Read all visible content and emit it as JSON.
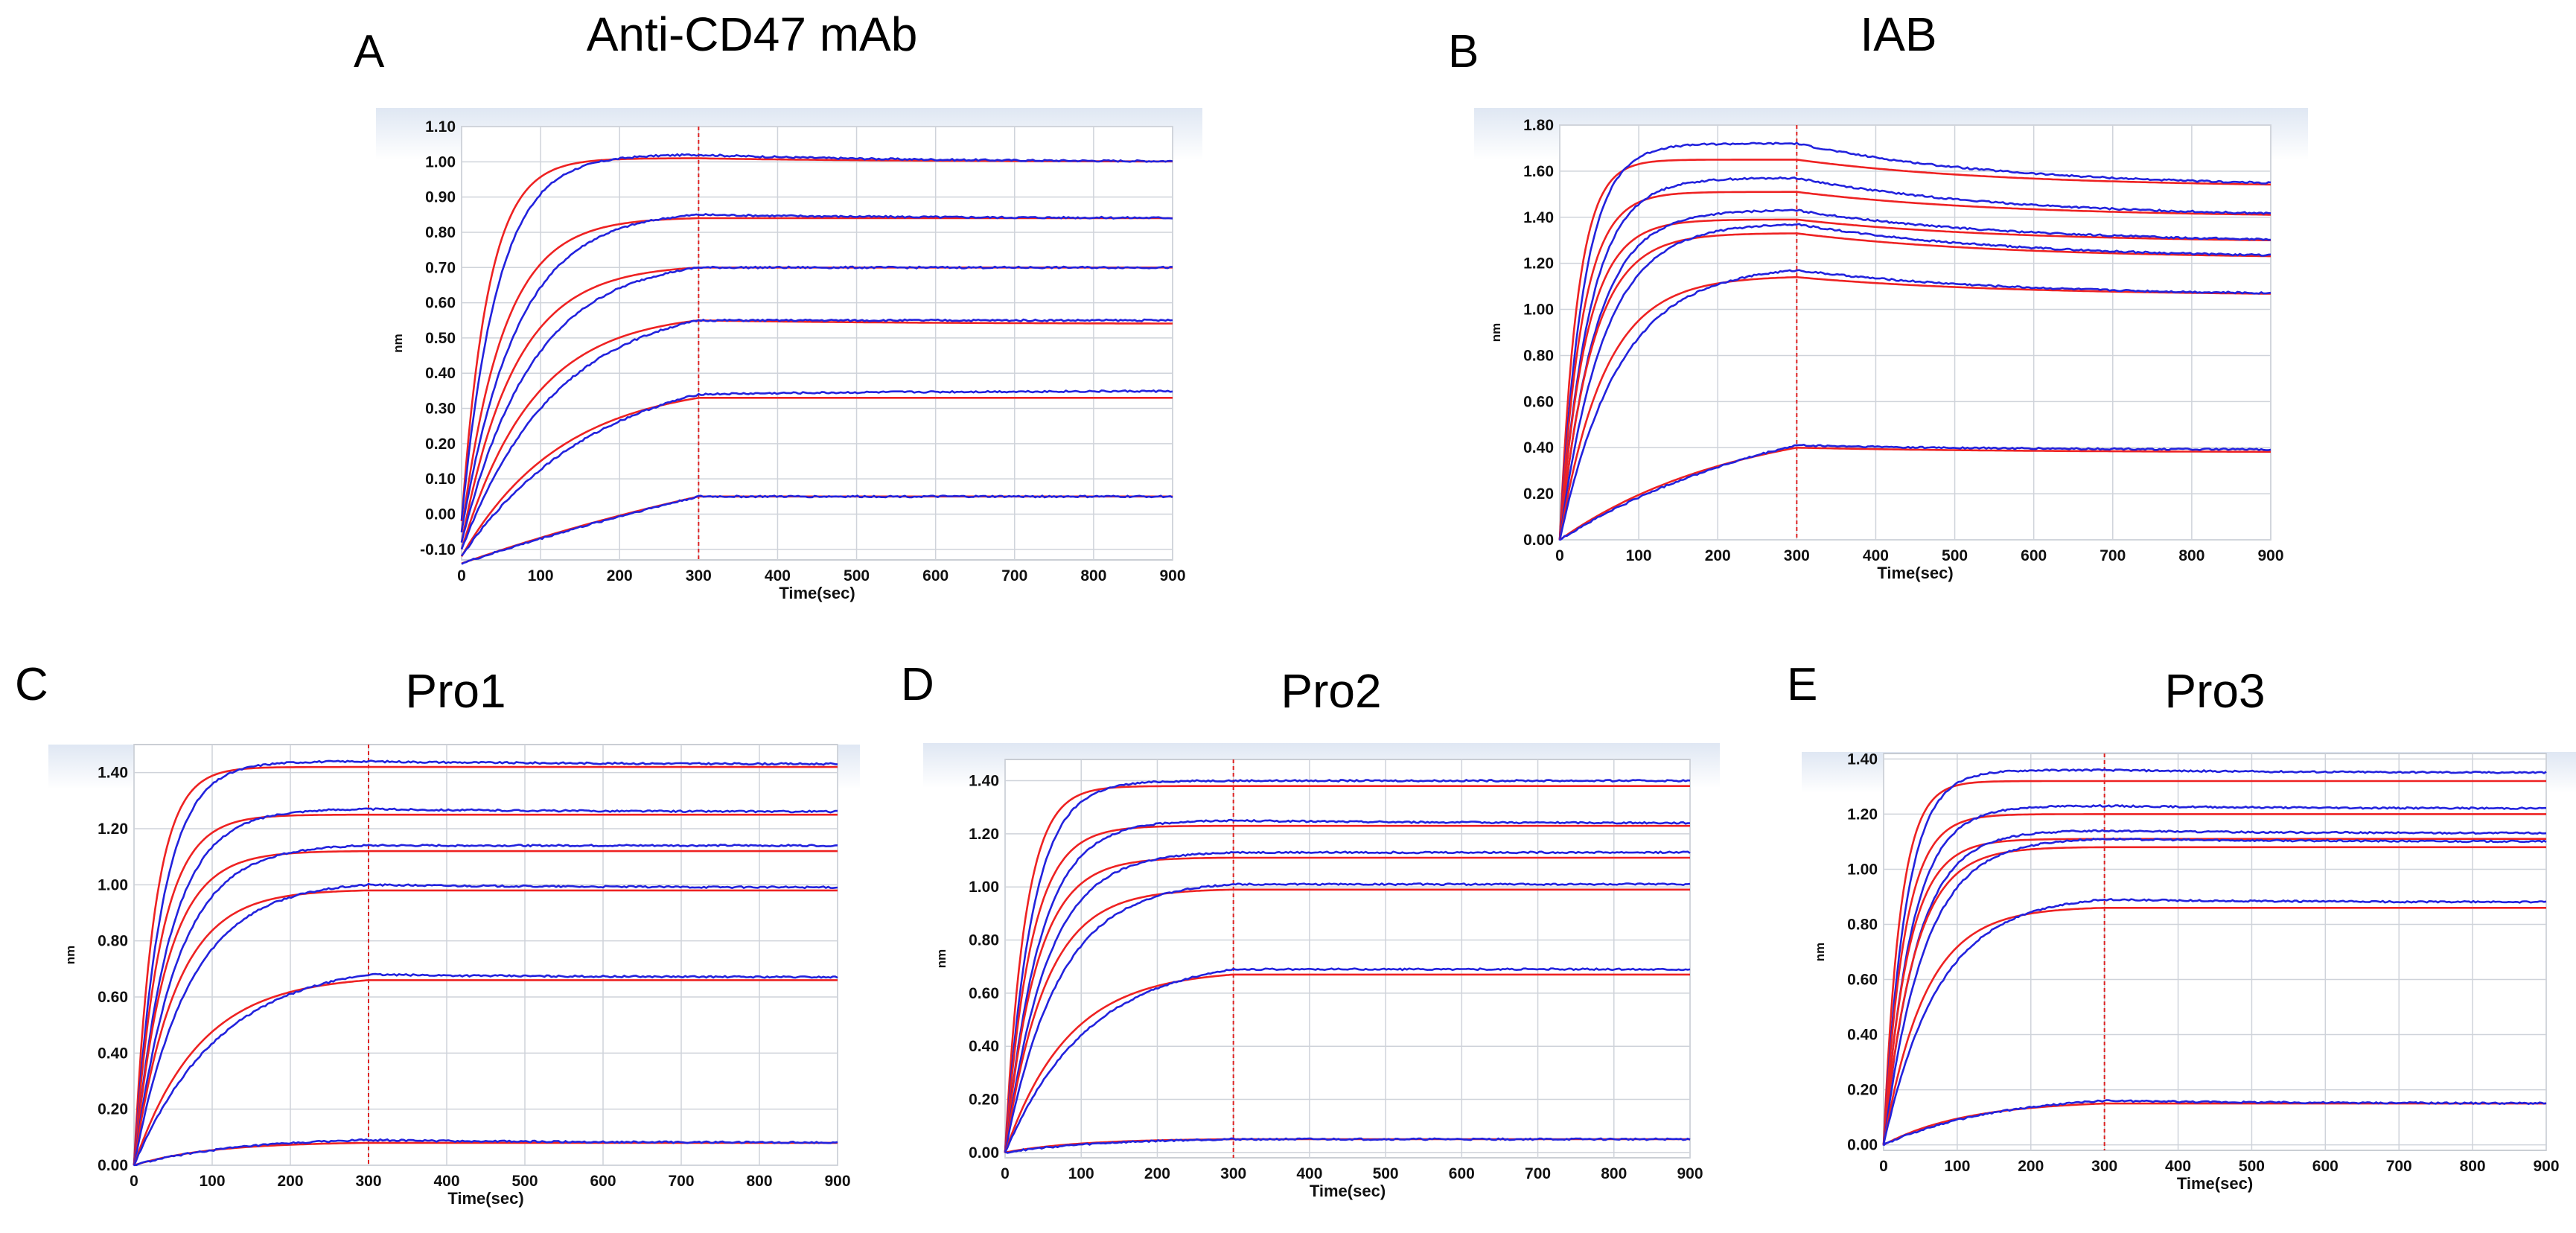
{
  "colors": {
    "fit": "#ee2222",
    "data": "#2222dd",
    "grid": "#cfd3da",
    "header": "#dfe7f3",
    "vline": "#dd2222"
  },
  "chart_data": [
    {
      "id": "A",
      "letter": "A",
      "title": "Anti-CD47 mAb",
      "type": "line",
      "xlabel": "Time(sec)",
      "ylabel": "nm",
      "xlim": [
        0,
        900
      ],
      "xticks": [
        0,
        100,
        200,
        300,
        400,
        500,
        600,
        700,
        800,
        900
      ],
      "ylim": [
        -0.13,
        1.1
      ],
      "yticks": [
        "1.10",
        "1.00",
        "0.90",
        "0.80",
        "0.70",
        "0.60",
        "0.50",
        "0.40",
        "0.30",
        "0.20",
        "0.10",
        "0.00",
        "-0.10"
      ],
      "yticks_val": [
        1.1,
        1.0,
        0.9,
        0.8,
        0.7,
        0.6,
        0.5,
        0.4,
        0.3,
        0.2,
        0.1,
        0.0,
        -0.1
      ],
      "assoc_end": 300,
      "series": [
        {
          "name": "curve-1",
          "y0": -0.02,
          "ymax": 1.02,
          "tau": 45,
          "end": 1.0,
          "fit_ymax": 1.01,
          "fit_end": 1.0
        },
        {
          "name": "curve-2",
          "y0": -0.05,
          "ymax": 0.85,
          "tau": 70,
          "end": 0.84,
          "fit_ymax": 0.84,
          "fit_end": 0.84
        },
        {
          "name": "curve-3",
          "y0": -0.08,
          "ymax": 0.7,
          "tau": 90,
          "end": 0.7,
          "fit_ymax": 0.7,
          "fit_end": 0.7
        },
        {
          "name": "curve-4",
          "y0": -0.1,
          "ymax": 0.55,
          "tau": 120,
          "end": 0.55,
          "fit_ymax": 0.55,
          "fit_end": 0.54
        },
        {
          "name": "curve-5",
          "y0": -0.12,
          "ymax": 0.34,
          "tau": 170,
          "end": 0.35,
          "fit_ymax": 0.33,
          "fit_end": 0.33
        },
        {
          "name": "curve-6",
          "y0": -0.14,
          "ymax": 0.05,
          "tau": 900,
          "end": 0.05,
          "fit_ymax": 0.05,
          "fit_end": 0.05
        }
      ]
    },
    {
      "id": "B",
      "letter": "B",
      "title": "IAB",
      "type": "line",
      "xlabel": "Time(sec)",
      "ylabel": "nm",
      "xlim": [
        0,
        900
      ],
      "xticks": [
        0,
        100,
        200,
        300,
        400,
        500,
        600,
        700,
        800,
        900
      ],
      "ylim": [
        0,
        1.8
      ],
      "yticks": [
        "1.80",
        "1.60",
        "1.40",
        "1.20",
        "1.00",
        "0.80",
        "0.60",
        "0.40",
        "0.20",
        "0.00"
      ],
      "yticks_val": [
        1.8,
        1.6,
        1.4,
        1.2,
        1.0,
        0.8,
        0.6,
        0.4,
        0.2,
        0.0
      ],
      "assoc_end": 300,
      "series": [
        {
          "name": "curve-1",
          "y0": 0.0,
          "ymax": 1.72,
          "tau": 30,
          "end": 1.53,
          "fit_ymax": 1.65,
          "fit_end": 1.53
        },
        {
          "name": "curve-2",
          "y0": 0.0,
          "ymax": 1.57,
          "tau": 38,
          "end": 1.4,
          "fit_ymax": 1.51,
          "fit_end": 1.4
        },
        {
          "name": "curve-3",
          "y0": 0.0,
          "ymax": 1.43,
          "tau": 45,
          "end": 1.29,
          "fit_ymax": 1.39,
          "fit_end": 1.29
        },
        {
          "name": "curve-4",
          "y0": 0.0,
          "ymax": 1.37,
          "tau": 55,
          "end": 1.22,
          "fit_ymax": 1.33,
          "fit_end": 1.22
        },
        {
          "name": "curve-5",
          "y0": 0.0,
          "ymax": 1.17,
          "tau": 75,
          "end": 1.06,
          "fit_ymax": 1.14,
          "fit_end": 1.06
        },
        {
          "name": "curve-6",
          "y0": 0.0,
          "ymax": 0.41,
          "tau": 300,
          "end": 0.39,
          "fit_ymax": 0.4,
          "fit_end": 0.38
        }
      ]
    },
    {
      "id": "C",
      "letter": "C",
      "title": "Pro1",
      "type": "line",
      "xlabel": "Time(sec)",
      "ylabel": "nm",
      "xlim": [
        0,
        900
      ],
      "xticks": [
        0,
        100,
        200,
        300,
        400,
        500,
        600,
        700,
        800,
        900
      ],
      "ylim": [
        0,
        1.5
      ],
      "yticks": [
        "1.40",
        "1.20",
        "1.00",
        "0.80",
        "0.60",
        "0.40",
        "0.20",
        "0.00"
      ],
      "yticks_val": [
        1.4,
        1.2,
        1.0,
        0.8,
        0.6,
        0.4,
        0.2,
        0.0
      ],
      "assoc_end": 300,
      "series": [
        {
          "name": "curve-1",
          "y0": 0.0,
          "ymax": 1.44,
          "tau": 35,
          "end": 1.43,
          "fit_ymax": 1.42,
          "fit_end": 1.42
        },
        {
          "name": "curve-2",
          "y0": 0.0,
          "ymax": 1.27,
          "tau": 45,
          "end": 1.26,
          "fit_ymax": 1.25,
          "fit_end": 1.25
        },
        {
          "name": "curve-3",
          "y0": 0.0,
          "ymax": 1.14,
          "tau": 55,
          "end": 1.14,
          "fit_ymax": 1.12,
          "fit_end": 1.12
        },
        {
          "name": "curve-4",
          "y0": 0.0,
          "ymax": 1.0,
          "tau": 70,
          "end": 0.99,
          "fit_ymax": 0.98,
          "fit_end": 0.98
        },
        {
          "name": "curve-5",
          "y0": 0.0,
          "ymax": 0.68,
          "tau": 110,
          "end": 0.67,
          "fit_ymax": 0.66,
          "fit_end": 0.66
        },
        {
          "name": "curve-6",
          "y0": 0.0,
          "ymax": 0.09,
          "tau": 130,
          "end": 0.08,
          "fit_ymax": 0.08,
          "fit_end": 0.08
        }
      ]
    },
    {
      "id": "D",
      "letter": "D",
      "title": "Pro2",
      "type": "line",
      "xlabel": "Time(sec)",
      "ylabel": "nm",
      "xlim": [
        0,
        900
      ],
      "xticks": [
        0,
        100,
        200,
        300,
        400,
        500,
        600,
        700,
        800,
        900
      ],
      "ylim": [
        -0.02,
        1.48
      ],
      "yticks": [
        "1.40",
        "1.20",
        "1.00",
        "0.80",
        "0.60",
        "0.40",
        "0.20",
        "0.00"
      ],
      "yticks_val": [
        1.4,
        1.2,
        1.0,
        0.8,
        0.6,
        0.4,
        0.2,
        0.0
      ],
      "assoc_end": 300,
      "series": [
        {
          "name": "curve-1",
          "y0": 0.0,
          "ymax": 1.4,
          "tau": 35,
          "end": 1.4,
          "fit_ymax": 1.38,
          "fit_end": 1.38
        },
        {
          "name": "curve-2",
          "y0": 0.0,
          "ymax": 1.25,
          "tau": 45,
          "end": 1.24,
          "fit_ymax": 1.23,
          "fit_end": 1.23
        },
        {
          "name": "curve-3",
          "y0": 0.0,
          "ymax": 1.13,
          "tau": 55,
          "end": 1.13,
          "fit_ymax": 1.11,
          "fit_end": 1.11
        },
        {
          "name": "curve-4",
          "y0": 0.0,
          "ymax": 1.01,
          "tau": 70,
          "end": 1.01,
          "fit_ymax": 0.99,
          "fit_end": 0.99
        },
        {
          "name": "curve-5",
          "y0": 0.0,
          "ymax": 0.69,
          "tau": 110,
          "end": 0.69,
          "fit_ymax": 0.67,
          "fit_end": 0.67
        },
        {
          "name": "curve-6",
          "y0": 0.0,
          "ymax": 0.05,
          "tau": 130,
          "end": 0.05,
          "fit_ymax": 0.05,
          "fit_end": 0.05
        }
      ]
    },
    {
      "id": "E",
      "letter": "E",
      "title": "Pro3",
      "type": "line",
      "xlabel": "Time(sec)",
      "ylabel": "nm",
      "xlim": [
        0,
        900
      ],
      "xticks": [
        0,
        100,
        200,
        300,
        400,
        500,
        600,
        700,
        800,
        900
      ],
      "ylim": [
        -0.02,
        1.42
      ],
      "yticks": [
        "1.40",
        "1.20",
        "1.00",
        "0.80",
        "0.60",
        "0.40",
        "0.20",
        "0.00"
      ],
      "yticks_val": [
        1.4,
        1.2,
        1.0,
        0.8,
        0.6,
        0.4,
        0.2,
        0.0
      ],
      "assoc_end": 300,
      "series": [
        {
          "name": "curve-1",
          "y0": 0.0,
          "ymax": 1.36,
          "tau": 30,
          "end": 1.35,
          "fit_ymax": 1.32,
          "fit_end": 1.32
        },
        {
          "name": "curve-2",
          "y0": 0.0,
          "ymax": 1.23,
          "tau": 38,
          "end": 1.22,
          "fit_ymax": 1.2,
          "fit_end": 1.2
        },
        {
          "name": "curve-3",
          "y0": 0.0,
          "ymax": 1.14,
          "tau": 45,
          "end": 1.13,
          "fit_ymax": 1.11,
          "fit_end": 1.11
        },
        {
          "name": "curve-4",
          "y0": 0.0,
          "ymax": 1.11,
          "tau": 55,
          "end": 1.1,
          "fit_ymax": 1.08,
          "fit_end": 1.08
        },
        {
          "name": "curve-5",
          "y0": 0.0,
          "ymax": 0.89,
          "tau": 75,
          "end": 0.88,
          "fit_ymax": 0.86,
          "fit_end": 0.86
        },
        {
          "name": "curve-6",
          "y0": 0.0,
          "ymax": 0.16,
          "tau": 150,
          "end": 0.15,
          "fit_ymax": 0.15,
          "fit_end": 0.15
        }
      ]
    }
  ]
}
